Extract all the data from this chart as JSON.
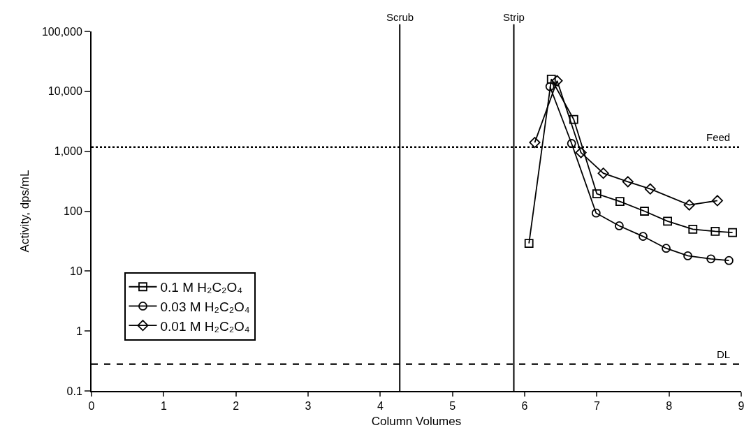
{
  "chart_data": {
    "type": "line",
    "xlabel": "Column Volumes",
    "ylabel": "Activity, dps/mL",
    "log": "y",
    "grid": false,
    "legend": "bottom left",
    "line_style": "solid",
    "xlim": [
      0,
      9
    ],
    "xticks": [
      0,
      1,
      2,
      3,
      4,
      5,
      6,
      7,
      8,
      9
    ],
    "ylim": [
      0.1,
      100000
    ],
    "yticks": [
      0.1,
      1,
      10,
      100,
      {
        "value": 1000,
        "label": "1,000"
      },
      {
        "value": 10000,
        "label": "10,000"
      },
      {
        "value": 100000,
        "label": "100,000"
      }
    ],
    "series": [
      {
        "name": "0.1 M H₂C₂O₄",
        "color": "#000000",
        "marker": "square",
        "x": [
          6.06,
          6.37,
          6.68,
          7.0,
          7.32,
          7.66,
          7.98,
          8.33,
          8.64,
          8.88
        ],
        "values": [
          29,
          16000,
          3400,
          195,
          145,
          100,
          68,
          50,
          46,
          44
        ]
      },
      {
        "name": "0.03 M H₂C₂O₄",
        "color": "#000000",
        "marker": "circle",
        "x": [
          6.35,
          6.65,
          6.99,
          7.31,
          7.64,
          7.96,
          8.26,
          8.58,
          8.83
        ],
        "values": [
          12000,
          1350,
          93,
          57,
          38,
          24,
          18,
          16,
          15
        ]
      },
      {
        "name": "0.01 M H₂C₂O₄",
        "color": "#000000",
        "marker": "diamond",
        "x": [
          6.14,
          6.45,
          6.78,
          7.09,
          7.43,
          7.74,
          8.28,
          8.67
        ],
        "values": [
          1400,
          15000,
          950,
          430,
          310,
          235,
          127,
          150
        ]
      }
    ],
    "ref_lines": [
      {
        "axis": "x",
        "value": 4.27,
        "label": "Scrub",
        "color": "#000000",
        "line_style": "solid"
      },
      {
        "axis": "x",
        "value": 5.85,
        "label": "Strip",
        "color": "#000000",
        "line_style": "solid"
      },
      {
        "axis": "y",
        "value": 1170,
        "label": "Feed",
        "color": "#000000",
        "line_style": "dotted"
      },
      {
        "axis": "y",
        "value": 0.28,
        "label": "DL",
        "color": "#000000",
        "line_style": "dashed"
      }
    ]
  }
}
